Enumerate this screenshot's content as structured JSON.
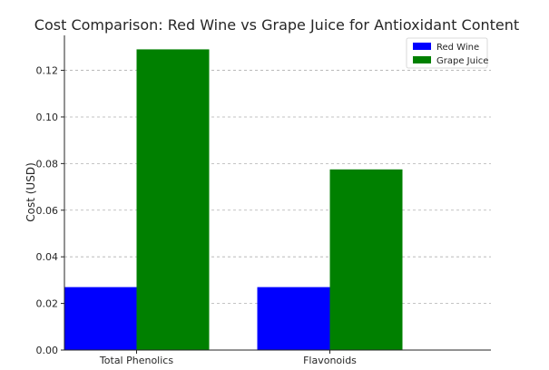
{
  "chart_data": {
    "type": "bar",
    "title": "Cost Comparison: Red Wine vs Grape Juice for Antioxidant Content",
    "xlabel": "",
    "ylabel": "Cost (USD)",
    "categories": [
      "Total Phenolics",
      "Flavonoids"
    ],
    "series": [
      {
        "name": "Red Wine",
        "color": "#0000ff",
        "values": [
          0.027,
          0.027
        ]
      },
      {
        "name": "Grape Juice",
        "color": "#008000",
        "values": [
          0.129,
          0.0775
        ]
      }
    ],
    "ylim": [
      0,
      0.135
    ],
    "yticks": [
      "0.00",
      "0.02",
      "0.04",
      "0.06",
      "0.08",
      "0.10",
      "0.12"
    ],
    "grid": true,
    "legend_position": "top-right"
  }
}
